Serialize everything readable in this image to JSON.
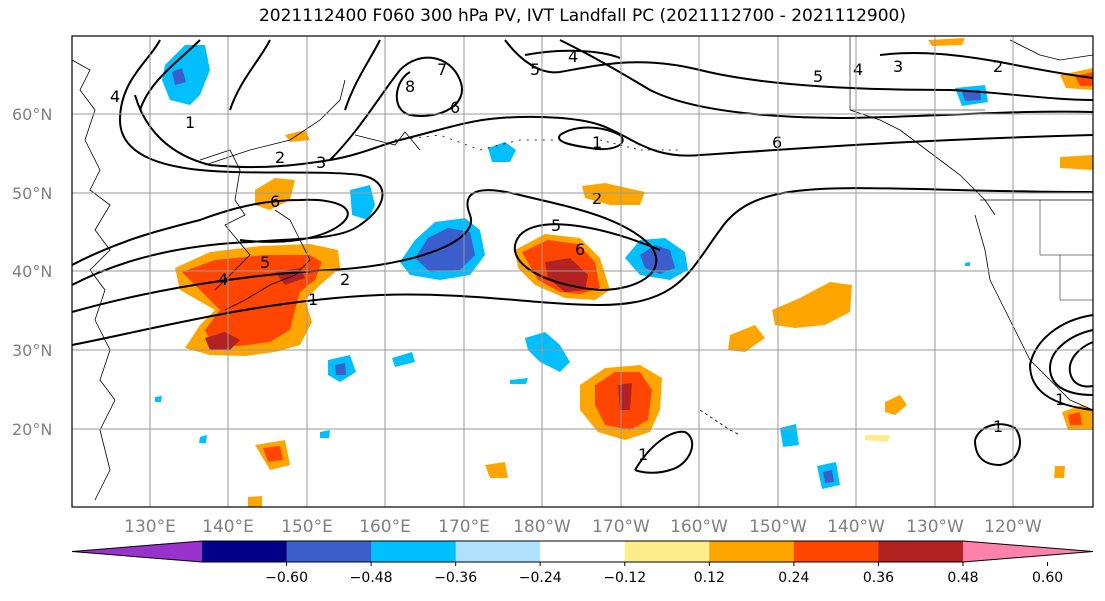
{
  "title": "2021112400 F060 300 hPa PV, IVT Landfall PC (2021112700 - 2021112900)",
  "lat_labels": [
    "60°N",
    "50°N",
    "40°N",
    "30°N",
    "20°N"
  ],
  "lon_labels": [
    "130°E",
    "140°E",
    "150°E",
    "160°E",
    "170°E",
    "180°W",
    "170°W",
    "160°W",
    "150°W",
    "140°W",
    "130°W",
    "120°W"
  ],
  "colorbar": {
    "ticks": [
      "−0.60",
      "−0.48",
      "−0.36",
      "−0.24",
      "−0.12",
      "0.12",
      "0.24",
      "0.36",
      "0.48",
      "0.60"
    ],
    "colors": [
      "#9932cc",
      "#00008b",
      "#3a5fcd",
      "#00bfff",
      "#b0e2ff",
      "#ffffff",
      "#ffec8b",
      "#ffa500",
      "#ff4500",
      "#b22222",
      "#ff82ab"
    ]
  },
  "contour_labels": {
    "c1": "1",
    "c2": "2",
    "c3": "3",
    "c4": "4",
    "c5": "5",
    "c6": "6",
    "c7": "7",
    "c8": "8"
  }
}
